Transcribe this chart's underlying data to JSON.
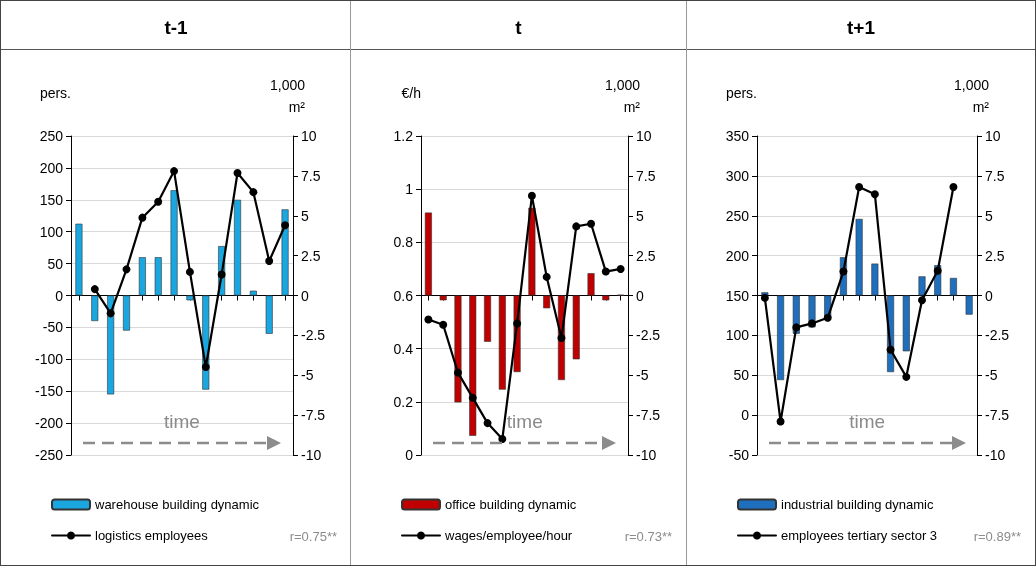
{
  "chart_data": [
    {
      "type": "bar",
      "title": "t-1",
      "ylabel": "pers.",
      "y2label": "1,000 m²",
      "categories": [
        null,
        null,
        null,
        null,
        null,
        null,
        null,
        null,
        null,
        null,
        null,
        null,
        null,
        null
      ],
      "series": [
        {
          "name": "warehouse building dynamic",
          "axis": "y2",
          "color": "#1aa7e0",
          "values": [
            4.5,
            -1.6,
            -6.2,
            -2.2,
            2.4,
            2.4,
            6.6,
            -0.3,
            -5.9,
            3.1,
            6.0,
            0.3,
            -2.4,
            5.4
          ]
        },
        {
          "name": "logistics employees",
          "type": "line",
          "color": "#000000",
          "values": [
            null,
            10,
            -28,
            41,
            122,
            147,
            195,
            37,
            -112,
            33,
            192,
            162,
            54,
            110
          ]
        }
      ],
      "ylim": [
        -250,
        250
      ],
      "yticks": [
        -250,
        -200,
        -150,
        -100,
        -50,
        0,
        50,
        100,
        150,
        200,
        250
      ],
      "y2lim": [
        -10,
        10
      ],
      "y2ticks": [
        -10,
        -7.5,
        -5,
        -2.5,
        0,
        2.5,
        5,
        7.5,
        10
      ],
      "grid": "y",
      "legend": "bottom",
      "marker": "circle",
      "line_style": "solid",
      "annotations": [
        "time",
        "r=0.75**"
      ]
    },
    {
      "type": "bar",
      "title": "t",
      "ylabel": "€/h",
      "y2label": "1,000 m²",
      "categories": [
        null,
        null,
        null,
        null,
        null,
        null,
        null,
        null,
        null,
        null,
        null,
        null,
        null,
        null
      ],
      "series": [
        {
          "name": "office building dynamic",
          "axis": "y2",
          "color": "#c00000",
          "values": [
            5.2,
            -0.3,
            -6.7,
            -8.8,
            -2.9,
            -5.9,
            -4.8,
            5.5,
            -0.8,
            -5.3,
            -4.0,
            1.4,
            -0.3,
            0.05
          ]
        },
        {
          "name": "wages/employee/hour",
          "type": "line",
          "color": "#000000",
          "values": [
            0.51,
            0.49,
            0.31,
            0.215,
            0.12,
            0.06,
            0.495,
            0.975,
            0.67,
            0.44,
            0.86,
            0.87,
            0.69,
            0.7
          ]
        }
      ],
      "ylim": [
        0,
        1.2
      ],
      "yticks": [
        0,
        0.2,
        0.4,
        0.6,
        0.8,
        1,
        1.2
      ],
      "y2lim": [
        -10,
        10
      ],
      "y2ticks": [
        -10,
        -7.5,
        -5,
        -2.5,
        0,
        2.5,
        5,
        7.5,
        10
      ],
      "grid": "y",
      "legend": "bottom",
      "marker": "circle",
      "line_style": "solid",
      "annotations": [
        "time",
        "r=0.73**"
      ]
    },
    {
      "type": "bar",
      "title": "t+1",
      "ylabel": "pers.",
      "y2label": "1,000 m²",
      "categories": [
        null,
        null,
        null,
        null,
        null,
        null,
        null,
        null,
        null,
        null,
        null,
        null,
        null,
        null
      ],
      "series": [
        {
          "name": "industrial building dynamic",
          "axis": "y2",
          "color": "#1f6fbf",
          "values": [
            0.2,
            -5.3,
            -2.4,
            -2.0,
            -1.4,
            2.4,
            4.8,
            2.0,
            -4.8,
            -3.5,
            1.2,
            1.9,
            1.1,
            -1.2
          ]
        },
        {
          "name": "employees tertiary sector 3",
          "type": "line",
          "color": "#000000",
          "values": [
            147,
            -8,
            110,
            115,
            122,
            180,
            286,
            277,
            82,
            48,
            144,
            181,
            286,
            null
          ]
        }
      ],
      "ylim": [
        -50,
        350
      ],
      "yticks": [
        -50,
        0,
        50,
        100,
        150,
        200,
        250,
        300,
        350
      ],
      "y2lim": [
        -10,
        10
      ],
      "y2ticks": [
        -10,
        -7.5,
        -5,
        -2.5,
        0,
        2.5,
        5,
        7.5,
        10
      ],
      "grid": "y",
      "legend": "bottom",
      "marker": "circle",
      "line_style": "solid",
      "annotations": [
        "time",
        "r=0.89**"
      ]
    }
  ]
}
